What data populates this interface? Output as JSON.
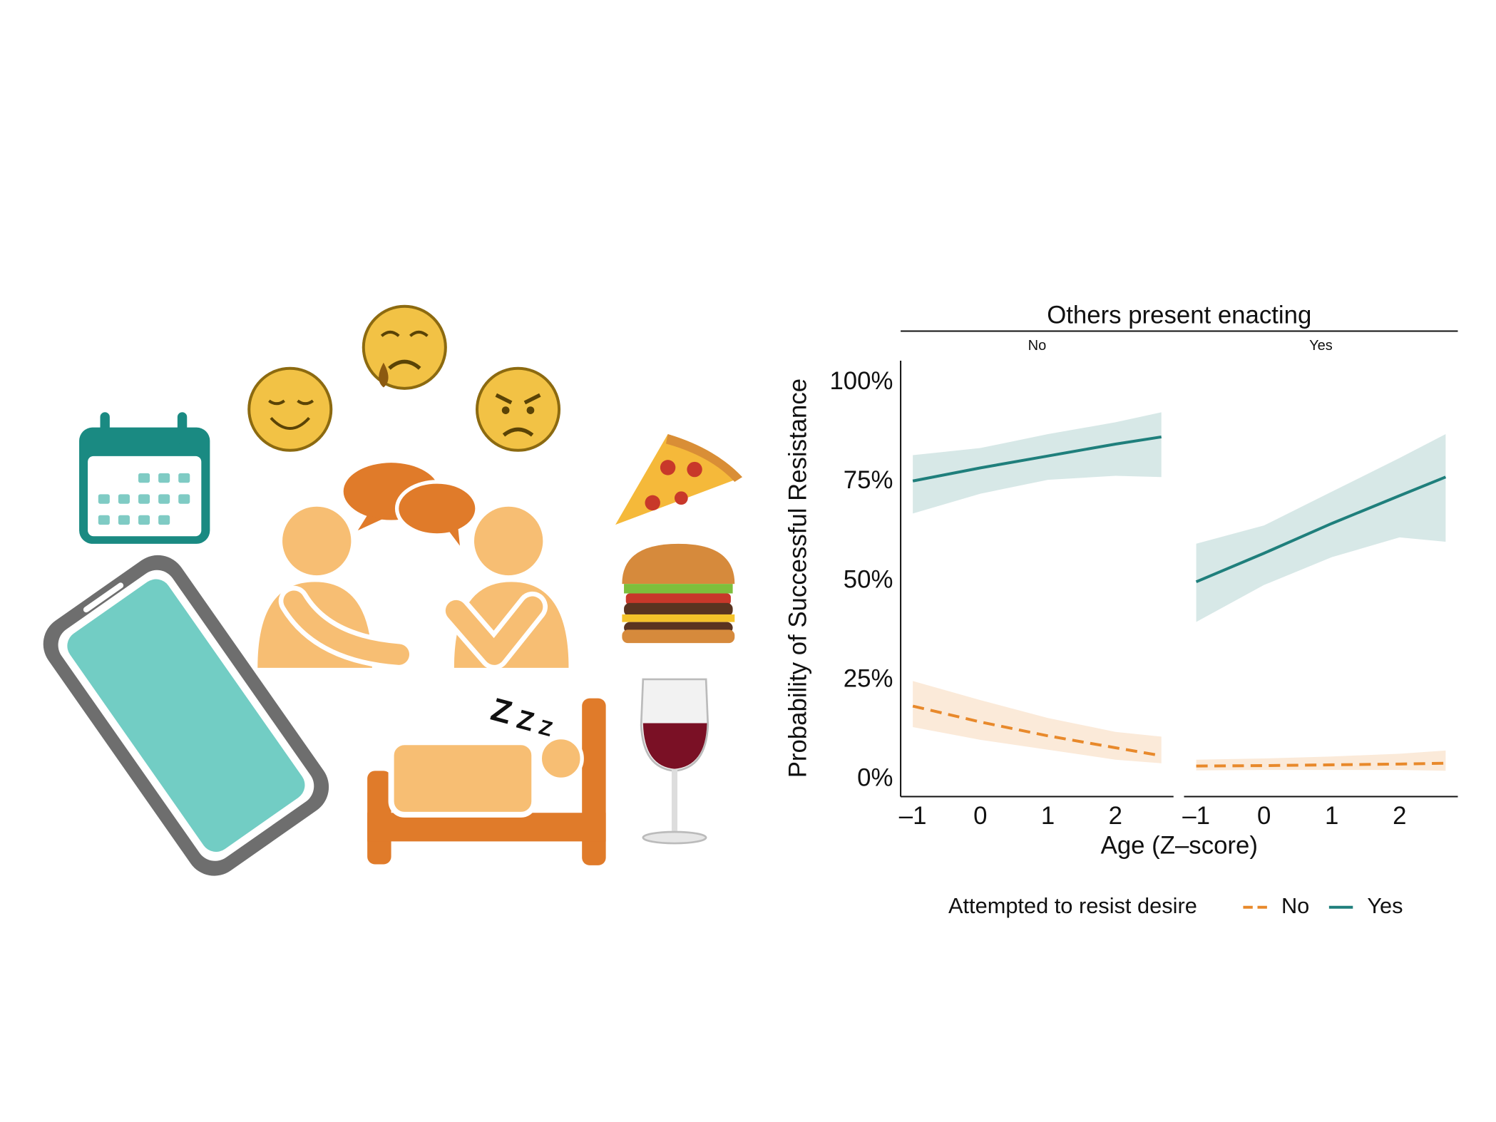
{
  "chart_data": {
    "type": "line",
    "facet_title": "Others present enacting",
    "x_label": "Age (Z–score)",
    "y_label": "Probability of Successful Resistance",
    "legend_title": "Attempted to resist desire",
    "x": [
      -1,
      0,
      1,
      2,
      2.68
    ],
    "xlim": [
      -1.18,
      2.86
    ],
    "xticks": [
      {
        "value": -1,
        "label": "–1"
      },
      0,
      1,
      2
    ],
    "ylim": [
      -4.3,
      105.5
    ],
    "yticks": [
      {
        "value": 0,
        "label": "0%"
      },
      {
        "value": 25,
        "label": "25%"
      },
      {
        "value": 50,
        "label": "50%"
      },
      {
        "value": 75,
        "label": "75%"
      },
      {
        "value": 100,
        "label": "100%"
      }
    ],
    "grid": false,
    "panels": [
      {
        "label": "No",
        "series": [
          {
            "name": "No",
            "color": "#e8892b",
            "dash": true,
            "values": [
              18.5,
              14.5,
              11,
              8,
              6
            ],
            "lower": [
              13.2,
              10,
              7.5,
              5,
              4.1
            ],
            "upper": [
              24.8,
              20,
              15.5,
              12,
              10.8
            ]
          },
          {
            "name": "Yes",
            "color": "#1f7f7c",
            "dash": false,
            "values": [
              75.2,
              78.5,
              81.5,
              84.5,
              86.3
            ],
            "lower": [
              67,
              72,
              75.5,
              76.5,
              76.2
            ],
            "upper": [
              81.7,
              83.5,
              87,
              90,
              92.5
            ]
          }
        ]
      },
      {
        "label": "Yes",
        "series": [
          {
            "name": "No",
            "color": "#e8892b",
            "dash": true,
            "values": [
              3.4,
              3.5,
              3.7,
              3.9,
              4.1
            ],
            "lower": [
              2.3,
              2.4,
              2.4,
              2.4,
              2.2
            ],
            "upper": [
              5,
              5.3,
              5.8,
              6.5,
              7.3
            ]
          },
          {
            "name": "Yes",
            "color": "#1f7f7c",
            "dash": false,
            "values": [
              49.8,
              57,
              64.5,
              71.5,
              76.2
            ],
            "lower": [
              39.7,
              49,
              56,
              61,
              59.9
            ],
            "upper": [
              59.4,
              64,
              72.5,
              81,
              87
            ]
          }
        ]
      }
    ]
  }
}
